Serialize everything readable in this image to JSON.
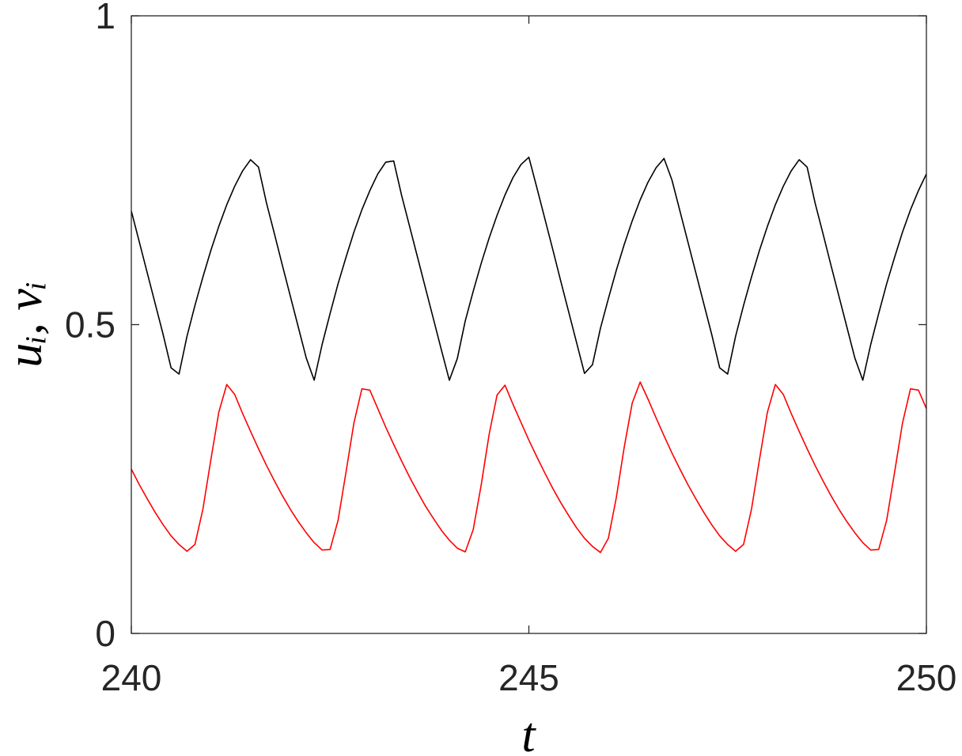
{
  "chart_data": {
    "type": "line",
    "xlabel": "t",
    "ylabel": "uᵢ, vᵢ",
    "x": [
      240,
      240.1,
      240.2,
      240.3,
      240.4,
      240.5,
      240.6,
      240.7,
      240.8,
      240.9,
      241,
      241.1,
      241.2,
      241.3,
      241.4,
      241.5,
      241.6,
      241.7,
      241.8,
      241.9,
      242,
      242.1,
      242.2,
      242.3,
      242.4,
      242.5,
      242.6,
      242.7,
      242.8,
      242.9,
      243,
      243.1,
      243.2,
      243.3,
      243.4,
      243.5,
      243.6,
      243.7,
      243.8,
      243.9,
      244,
      244.1,
      244.2,
      244.3,
      244.4,
      244.5,
      244.6,
      244.7,
      244.8,
      244.9,
      245,
      245.1,
      245.2,
      245.3,
      245.4,
      245.5,
      245.6,
      245.7,
      245.8,
      245.9,
      246,
      246.1,
      246.2,
      246.3,
      246.4,
      246.5,
      246.6,
      246.7,
      246.8,
      246.9,
      247,
      247.1,
      247.2,
      247.3,
      247.4,
      247.5,
      247.6,
      247.7,
      247.8,
      247.9,
      248,
      248.1,
      248.2,
      248.3,
      248.4,
      248.5,
      248.6,
      248.7,
      248.8,
      248.9,
      249,
      249.1,
      249.2,
      249.3,
      249.4,
      249.5,
      249.6,
      249.7,
      249.8,
      249.9,
      250
    ],
    "series": [
      {
        "color": "#000000",
        "values": [
          0.684,
          0.634,
          0.584,
          0.534,
          0.484,
          0.43,
          0.42,
          0.481,
          0.531,
          0.577,
          0.62,
          0.659,
          0.694,
          0.724,
          0.749,
          0.767,
          0.755,
          0.697,
          0.647,
          0.596,
          0.546,
          0.496,
          0.446,
          0.41,
          0.468,
          0.518,
          0.566,
          0.609,
          0.65,
          0.686,
          0.717,
          0.744,
          0.763,
          0.765,
          0.709,
          0.659,
          0.609,
          0.559,
          0.509,
          0.459,
          0.41,
          0.445,
          0.506,
          0.554,
          0.599,
          0.64,
          0.677,
          0.71,
          0.738,
          0.759,
          0.771,
          0.722,
          0.672,
          0.622,
          0.571,
          0.521,
          0.471,
          0.421,
          0.435,
          0.494,
          0.542,
          0.588,
          0.63,
          0.668,
          0.702,
          0.731,
          0.754,
          0.769,
          0.734,
          0.684,
          0.634,
          0.584,
          0.534,
          0.484,
          0.43,
          0.42,
          0.481,
          0.531,
          0.577,
          0.62,
          0.659,
          0.694,
          0.724,
          0.749,
          0.767,
          0.755,
          0.697,
          0.647,
          0.596,
          0.546,
          0.496,
          0.446,
          0.41,
          0.468,
          0.518,
          0.566,
          0.609,
          0.65,
          0.686,
          0.717,
          0.744
        ]
      },
      {
        "color": "#ff0000",
        "values": [
          0.266,
          0.241,
          0.218,
          0.196,
          0.176,
          0.158,
          0.144,
          0.133,
          0.144,
          0.201,
          0.281,
          0.358,
          0.403,
          0.387,
          0.356,
          0.327,
          0.299,
          0.272,
          0.247,
          0.223,
          0.201,
          0.181,
          0.163,
          0.147,
          0.135,
          0.136,
          0.183,
          0.261,
          0.341,
          0.396,
          0.394,
          0.364,
          0.334,
          0.306,
          0.279,
          0.253,
          0.229,
          0.206,
          0.186,
          0.167,
          0.151,
          0.138,
          0.132,
          0.168,
          0.24,
          0.322,
          0.386,
          0.402,
          0.371,
          0.342,
          0.313,
          0.286,
          0.26,
          0.235,
          0.212,
          0.191,
          0.171,
          0.154,
          0.141,
          0.131,
          0.154,
          0.22,
          0.302,
          0.373,
          0.407,
          0.379,
          0.349,
          0.32,
          0.292,
          0.266,
          0.241,
          0.218,
          0.196,
          0.176,
          0.158,
          0.144,
          0.133,
          0.144,
          0.201,
          0.281,
          0.358,
          0.403,
          0.387,
          0.356,
          0.327,
          0.299,
          0.272,
          0.247,
          0.223,
          0.201,
          0.181,
          0.163,
          0.147,
          0.135,
          0.136,
          0.183,
          0.261,
          0.341,
          0.396,
          0.394,
          0.364
        ]
      }
    ],
    "xlim": [
      240,
      250
    ],
    "xticks": [
      240,
      245,
      250
    ],
    "ylim": [
      0,
      1
    ],
    "yticks": [
      0,
      0.5,
      1
    ],
    "grid": false
  }
}
